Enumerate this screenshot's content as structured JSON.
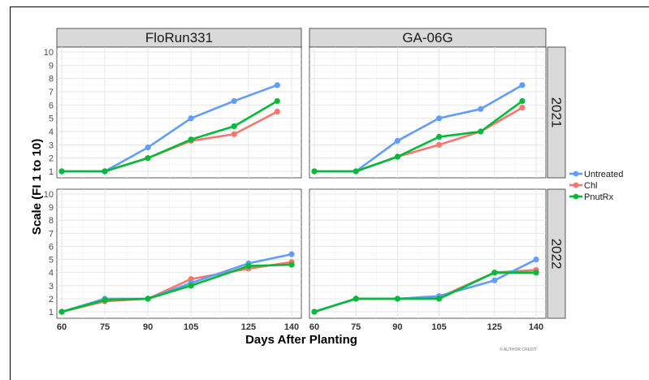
{
  "chart_data": {
    "type": "line",
    "xlabel": "Days After Planting",
    "ylabel": "Scale (FI 1 to 10)",
    "caption": "© AUTHOR CREDIT",
    "x_ticks": [
      60,
      75,
      90,
      105,
      125,
      140
    ],
    "y_ticks": [
      1,
      2,
      3,
      4,
      5,
      6,
      7,
      8,
      9,
      10
    ],
    "xlim": [
      60,
      140
    ],
    "ylim": [
      1,
      10
    ],
    "column_labels": [
      "FloRun331",
      "GA-06G"
    ],
    "row_labels": [
      "2021",
      "2022"
    ],
    "grid": true,
    "legend_position": "right",
    "legend": [
      {
        "name": "Untreated",
        "color": "#619CFF"
      },
      {
        "name": "Chl",
        "color": "#F8766D"
      },
      {
        "name": "PnutRx",
        "color": "#00BA38"
      }
    ],
    "panels": [
      {
        "column": "FloRun331",
        "row": "2021",
        "series": [
          {
            "name": "Untreated",
            "x": [
              60,
              75,
              90,
              105,
              120,
              135
            ],
            "y": [
              1.0,
              1.0,
              2.8,
              5.0,
              6.3,
              7.5
            ]
          },
          {
            "name": "Chl",
            "x": [
              60,
              75,
              90,
              105,
              120,
              135
            ],
            "y": [
              1.0,
              1.0,
              2.0,
              3.3,
              3.8,
              5.5
            ]
          },
          {
            "name": "PnutRx",
            "x": [
              60,
              75,
              90,
              105,
              120,
              135
            ],
            "y": [
              1.0,
              1.0,
              2.0,
              3.4,
              4.4,
              6.3
            ]
          }
        ]
      },
      {
        "column": "GA-06G",
        "row": "2021",
        "series": [
          {
            "name": "Untreated",
            "x": [
              60,
              75,
              90,
              105,
              120,
              135
            ],
            "y": [
              1.0,
              1.0,
              3.3,
              5.0,
              5.7,
              7.5
            ]
          },
          {
            "name": "Chl",
            "x": [
              60,
              75,
              90,
              105,
              120,
              135
            ],
            "y": [
              1.0,
              1.0,
              2.1,
              3.0,
              4.0,
              5.8
            ]
          },
          {
            "name": "PnutRx",
            "x": [
              60,
              75,
              90,
              105,
              120,
              135
            ],
            "y": [
              1.0,
              1.0,
              2.1,
              3.6,
              4.0,
              6.3
            ]
          }
        ]
      },
      {
        "column": "FloRun331",
        "row": "2022",
        "series": [
          {
            "name": "Untreated",
            "x": [
              60,
              75,
              90,
              105,
              125,
              140
            ],
            "y": [
              1.0,
              2.0,
              2.0,
              3.2,
              4.7,
              5.4
            ]
          },
          {
            "name": "Chl",
            "x": [
              60,
              75,
              90,
              105,
              125,
              140
            ],
            "y": [
              1.0,
              1.8,
              2.0,
              3.5,
              4.3,
              4.8
            ]
          },
          {
            "name": "PnutRx",
            "x": [
              60,
              75,
              90,
              105,
              125,
              140
            ],
            "y": [
              1.0,
              1.9,
              2.0,
              3.0,
              4.5,
              4.6
            ]
          }
        ]
      },
      {
        "column": "GA-06G",
        "row": "2022",
        "series": [
          {
            "name": "Untreated",
            "x": [
              60,
              75,
              90,
              105,
              125,
              140
            ],
            "y": [
              1.0,
              2.0,
              2.0,
              2.2,
              3.4,
              5.0
            ]
          },
          {
            "name": "Chl",
            "x": [
              60,
              75,
              90,
              105,
              125,
              140
            ],
            "y": [
              1.0,
              2.0,
              2.0,
              2.1,
              4.0,
              4.2
            ]
          },
          {
            "name": "PnutRx",
            "x": [
              60,
              75,
              90,
              105,
              125,
              140
            ],
            "y": [
              1.0,
              2.0,
              2.0,
              2.0,
              4.0,
              4.0
            ]
          }
        ]
      }
    ]
  }
}
